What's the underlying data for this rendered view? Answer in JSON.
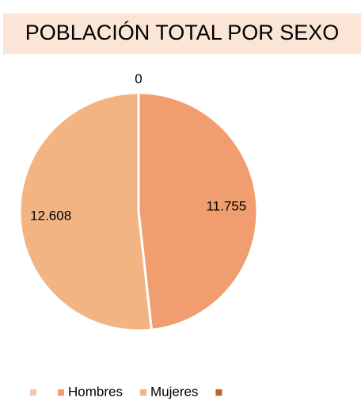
{
  "chart_data": {
    "type": "pie",
    "title": "POBLACIÓN TOTAL POR SEXO",
    "categories": [
      null,
      "Hombres",
      "Mujeres",
      null
    ],
    "values": [
      0,
      11755,
      12608,
      null
    ],
    "value_labels": [
      "0",
      "11.755",
      "12.608",
      null
    ],
    "colors": [
      "#f4c7b5",
      "#f09e6f",
      "#f3b483",
      "#c0652a"
    ],
    "legend": "bottom"
  }
}
